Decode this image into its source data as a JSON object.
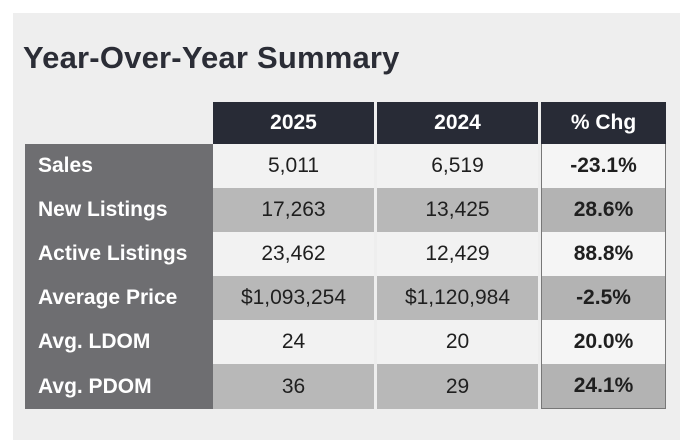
{
  "title": "Year-Over-Year Summary",
  "columns": {
    "current": "2025",
    "previous": "2024",
    "change": "% Chg"
  },
  "rows": [
    {
      "label": "Sales",
      "current": "5,011",
      "previous": "6,519",
      "change": "-23.1%"
    },
    {
      "label": "New Listings",
      "current": "17,263",
      "previous": "13,425",
      "change": "28.6%"
    },
    {
      "label": "Active Listings",
      "current": "23,462",
      "previous": "12,429",
      "change": "88.8%"
    },
    {
      "label": "Average Price",
      "current": "$1,093,254",
      "previous": "$1,120,984",
      "change": "-2.5%"
    },
    {
      "label": "Avg. LDOM",
      "current": "24",
      "previous": "20",
      "change": "20.0%"
    },
    {
      "label": "Avg. PDOM",
      "current": "36",
      "previous": "29",
      "change": "24.1%"
    }
  ],
  "colors": {
    "header_background": "#282b36",
    "row_label_background": "#6e6e71",
    "row_light": "#f2f2f2",
    "row_dark": "#b8b8b8",
    "panel_background": "#eeeeee"
  },
  "chart_data": {
    "type": "table",
    "title": "Year-Over-Year Summary",
    "columns": [
      "2025",
      "2024",
      "% Chg"
    ],
    "rows": [
      "Sales",
      "New Listings",
      "Active Listings",
      "Average Price",
      "Avg. LDOM",
      "Avg. PDOM"
    ],
    "values": [
      [
        5011,
        6519,
        -23.1
      ],
      [
        17263,
        13425,
        28.6
      ],
      [
        23462,
        12429,
        88.8
      ],
      [
        1093254,
        1120984,
        -2.5
      ],
      [
        24,
        20,
        20.0
      ],
      [
        36,
        29,
        24.1
      ]
    ]
  }
}
